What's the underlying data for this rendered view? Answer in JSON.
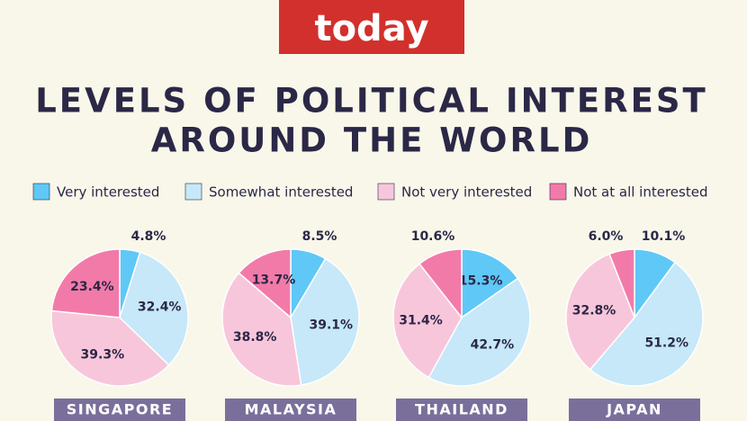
{
  "header": {
    "logo": "today",
    "title": [
      "LEVELS OF POLITICAL INTEREST",
      "AROUND THE WORLD"
    ]
  },
  "chart_data": [
    {
      "type": "pie",
      "label": "SINGAPORE",
      "categories": [
        "Very interested",
        "Somewhat interested",
        "Not very interested",
        "Not at all interested"
      ],
      "colors": [
        "#5fc8f6",
        "#c6e8f9",
        "#f8c6da",
        "#f27aa9"
      ],
      "values": [
        4.8,
        32.4,
        39.3,
        23.4
      ],
      "value_labels": [
        "4.8%",
        "32.4%",
        "39.3%",
        "23.4%"
      ]
    },
    {
      "type": "pie",
      "label": "MALAYSIA",
      "categories": [
        "Very interested",
        "Somewhat interested",
        "Not very interested",
        "Not at all interested"
      ],
      "colors": [
        "#5fc8f6",
        "#c6e8f9",
        "#f8c6da",
        "#f27aa9"
      ],
      "values": [
        8.5,
        39.1,
        38.8,
        13.7
      ],
      "value_labels": [
        "8.5%",
        "39.1%",
        "38.8%",
        "13.7%"
      ]
    },
    {
      "type": "pie",
      "label": "THAILAND",
      "categories": [
        "Very interested",
        "Somewhat interested",
        "Not very interested",
        "Not at all interested"
      ],
      "colors": [
        "#5fc8f6",
        "#c6e8f9",
        "#f8c6da",
        "#f27aa9"
      ],
      "values": [
        15.3,
        42.7,
        31.4,
        10.6
      ],
      "value_labels": [
        "15.3%",
        "42.7%",
        "31.4%",
        "10.6%"
      ]
    },
    {
      "type": "pie",
      "label": "JAPAN",
      "categories": [
        "Very interested",
        "Somewhat interested",
        "Not very interested",
        "Not at all interested"
      ],
      "colors": [
        "#5fc8f6",
        "#c6e8f9",
        "#f8c6da",
        "#f27aa9"
      ],
      "values": [
        10.1,
        51.2,
        32.8,
        6.0
      ],
      "value_labels": [
        "10.1%",
        "51.2%",
        "32.8%",
        "6.0%"
      ]
    }
  ]
}
